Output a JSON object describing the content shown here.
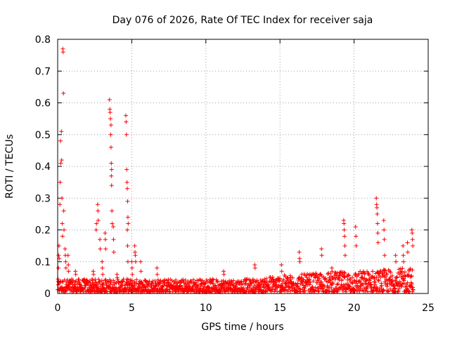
{
  "chart_data": {
    "type": "scatter",
    "title": "Day 076 of 2026, Rate Of TEC Index for receiver saja",
    "xlabel": "GPS time / hours",
    "ylabel": "ROTI / TECUs",
    "xlim": [
      0,
      25
    ],
    "ylim": [
      0,
      0.8
    ],
    "xticks": [
      0,
      5,
      10,
      15,
      20,
      25
    ],
    "yticks": [
      0,
      0.1,
      0.2,
      0.3,
      0.4,
      0.5,
      0.6,
      0.7,
      0.8
    ],
    "grid": true,
    "marker": "+",
    "color": "#ff0000",
    "x_range_observed": [
      0,
      24
    ],
    "baseline_band": [
      0.005,
      0.05
    ],
    "peaks": [
      {
        "x": 0.05,
        "values": [
          0.08,
          0.12,
          0.15,
          0.11
        ]
      },
      {
        "x": 0.15,
        "values": [
          0.28,
          0.35,
          0.48,
          0.41
        ]
      },
      {
        "x": 0.25,
        "values": [
          0.51,
          0.42,
          0.3,
          0.22,
          0.18
        ]
      },
      {
        "x": 0.35,
        "values": [
          0.77,
          0.76,
          0.63,
          0.26,
          0.2
        ]
      },
      {
        "x": 0.5,
        "values": [
          0.14,
          0.12,
          0.1,
          0.08
        ]
      },
      {
        "x": 0.7,
        "values": [
          0.12,
          0.09,
          0.07
        ]
      },
      {
        "x": 1.2,
        "values": [
          0.07,
          0.06
        ]
      },
      {
        "x": 2.4,
        "values": [
          0.07,
          0.06
        ]
      },
      {
        "x": 2.6,
        "values": [
          0.2,
          0.22
        ]
      },
      {
        "x": 2.7,
        "values": [
          0.28,
          0.26,
          0.23
        ]
      },
      {
        "x": 2.85,
        "values": [
          0.17,
          0.14
        ]
      },
      {
        "x": 3.0,
        "values": [
          0.1,
          0.08,
          0.06
        ]
      },
      {
        "x": 3.2,
        "values": [
          0.19,
          0.17,
          0.14
        ]
      },
      {
        "x": 3.5,
        "values": [
          0.61,
          0.58,
          0.57,
          0.55,
          0.5,
          0.46,
          0.37,
          0.34
        ]
      },
      {
        "x": 3.6,
        "values": [
          0.53,
          0.41,
          0.39,
          0.26,
          0.22
        ]
      },
      {
        "x": 3.75,
        "values": [
          0.21,
          0.17,
          0.13
        ]
      },
      {
        "x": 4.0,
        "values": [
          0.06,
          0.05
        ]
      },
      {
        "x": 4.6,
        "values": [
          0.56,
          0.54,
          0.5,
          0.39,
          0.35,
          0.33,
          0.29,
          0.24,
          0.22
        ]
      },
      {
        "x": 4.7,
        "values": [
          0.2,
          0.15,
          0.1
        ]
      },
      {
        "x": 5.0,
        "values": [
          0.1,
          0.08,
          0.06
        ]
      },
      {
        "x": 5.2,
        "values": [
          0.15,
          0.13,
          0.12,
          0.1
        ]
      },
      {
        "x": 5.6,
        "values": [
          0.1,
          0.07
        ]
      },
      {
        "x": 6.7,
        "values": [
          0.08,
          0.06
        ]
      },
      {
        "x": 11.2,
        "values": [
          0.07,
          0.06
        ]
      },
      {
        "x": 13.3,
        "values": [
          0.09,
          0.08
        ]
      },
      {
        "x": 15.1,
        "values": [
          0.09,
          0.07
        ]
      },
      {
        "x": 16.3,
        "values": [
          0.13,
          0.11,
          0.1
        ]
      },
      {
        "x": 17.8,
        "values": [
          0.14,
          0.12
        ]
      },
      {
        "x": 18.5,
        "values": [
          0.08,
          0.07
        ]
      },
      {
        "x": 19.3,
        "values": [
          0.23,
          0.22,
          0.2,
          0.18,
          0.15,
          0.12
        ]
      },
      {
        "x": 20.1,
        "values": [
          0.21,
          0.18,
          0.15
        ]
      },
      {
        "x": 21.5,
        "values": [
          0.3,
          0.28,
          0.27,
          0.25,
          0.22,
          0.19,
          0.16
        ]
      },
      {
        "x": 22.0,
        "values": [
          0.23,
          0.2,
          0.17,
          0.12
        ]
      },
      {
        "x": 22.8,
        "values": [
          0.12,
          0.1
        ]
      },
      {
        "x": 23.3,
        "values": [
          0.15,
          0.12,
          0.1
        ]
      },
      {
        "x": 23.6,
        "values": [
          0.16,
          0.13
        ]
      },
      {
        "x": 23.9,
        "values": [
          0.2,
          0.19,
          0.17,
          0.15
        ]
      }
    ]
  }
}
